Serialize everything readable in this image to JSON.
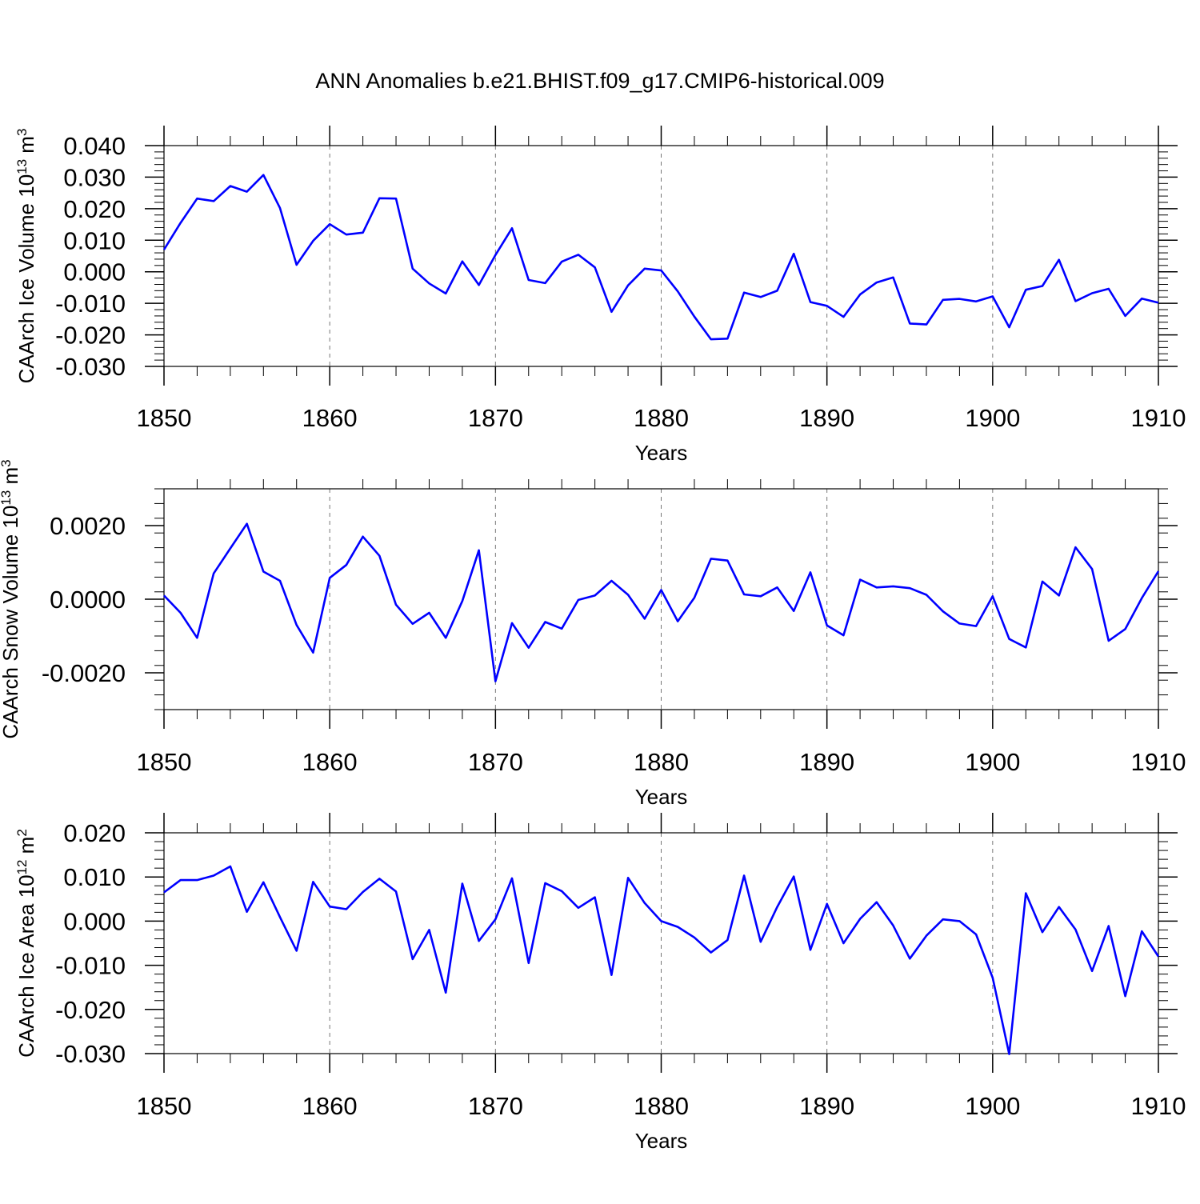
{
  "title": "ANN Anomalies b.e21.BHIST.f09_g17.CMIP6-historical.009",
  "colors": {
    "series": "#0000ff",
    "frame": "#000000",
    "grid": "#777777"
  },
  "chart_data": [
    {
      "type": "line",
      "ylabel": "CAArch Ice Volume 10",
      "ylabel_sup": "13",
      "ylabel_unit": " m",
      "ylabel_unit_sup": "3",
      "xlabel": "Years",
      "xlim": [
        1850,
        1910
      ],
      "ylim": [
        -0.03,
        0.04
      ],
      "grid": "vertical dashed",
      "x_ticks": [
        "1850",
        "1860",
        "1870",
        "1880",
        "1890",
        "1900",
        "1910"
      ],
      "y_tick_values": [
        -0.03,
        -0.02,
        -0.01,
        0.0,
        0.01,
        0.02,
        0.03,
        0.04
      ],
      "y_tick_labels": [
        "-0.030",
        "-0.020",
        "-0.010",
        "0.000",
        "0.010",
        "0.020",
        "0.030",
        "0.040"
      ],
      "x": [
        1850,
        1851,
        1852,
        1853,
        1854,
        1855,
        1856,
        1857,
        1858,
        1859,
        1860,
        1861,
        1862,
        1863,
        1864,
        1865,
        1866,
        1867,
        1868,
        1869,
        1870,
        1871,
        1872,
        1873,
        1874,
        1875,
        1876,
        1877,
        1878,
        1879,
        1880,
        1881,
        1882,
        1883,
        1884,
        1885,
        1886,
        1887,
        1888,
        1889,
        1890,
        1891,
        1892,
        1893,
        1894,
        1895,
        1896,
        1897,
        1898,
        1899,
        1900,
        1901,
        1902,
        1903,
        1904,
        1905,
        1906,
        1907,
        1908,
        1909,
        1910
      ],
      "values": [
        0.007,
        0.0155,
        0.0232,
        0.0224,
        0.0272,
        0.0254,
        0.0307,
        0.0202,
        0.0022,
        0.0098,
        0.0151,
        0.0118,
        0.0124,
        0.0233,
        0.0232,
        0.001,
        -0.0037,
        -0.0069,
        0.0033,
        -0.0042,
        0.0053,
        0.0138,
        -0.0026,
        -0.0036,
        0.0032,
        0.0054,
        0.0014,
        -0.0127,
        -0.0043,
        0.001,
        0.0004,
        -0.0062,
        -0.0142,
        -0.0214,
        -0.0212,
        -0.0066,
        -0.008,
        -0.006,
        0.0057,
        -0.0096,
        -0.0108,
        -0.0143,
        -0.0072,
        -0.0034,
        -0.0018,
        -0.0164,
        -0.0167,
        -0.0089,
        -0.0086,
        -0.0094,
        -0.0078,
        -0.0176,
        -0.0057,
        -0.0045,
        0.0038,
        -0.0093,
        -0.0068,
        -0.0054,
        -0.014,
        -0.0085,
        -0.0098
      ]
    },
    {
      "type": "line",
      "ylabel": "CAArch Snow Volume 10",
      "ylabel_sup": "13",
      "ylabel_unit": " m",
      "ylabel_unit_sup": "3",
      "xlabel": "Years",
      "xlim": [
        1850,
        1910
      ],
      "ylim": [
        -0.003,
        0.003
      ],
      "grid": "vertical dashed",
      "x_ticks": [
        "1850",
        "1860",
        "1870",
        "1880",
        "1890",
        "1900",
        "1910"
      ],
      "y_tick_values": [
        -0.002,
        0.0,
        0.002
      ],
      "y_tick_labels": [
        "-0.0020",
        "0.0000",
        "0.0020"
      ],
      "x": [
        1850,
        1851,
        1852,
        1853,
        1854,
        1855,
        1856,
        1857,
        1858,
        1859,
        1860,
        1861,
        1862,
        1863,
        1864,
        1865,
        1866,
        1867,
        1868,
        1869,
        1870,
        1871,
        1872,
        1873,
        1874,
        1875,
        1876,
        1877,
        1878,
        1879,
        1880,
        1881,
        1882,
        1883,
        1884,
        1885,
        1886,
        1887,
        1888,
        1889,
        1890,
        1891,
        1892,
        1893,
        1894,
        1895,
        1896,
        1897,
        1898,
        1899,
        1900,
        1901,
        1902,
        1903,
        1904,
        1905,
        1906,
        1907,
        1908,
        1909,
        1910
      ],
      "values": [
        0.0001,
        -0.00037,
        -0.00105,
        0.0007,
        0.00138,
        0.00205,
        0.00075,
        0.0005,
        -0.0007,
        -0.00145,
        0.00058,
        0.00093,
        0.0017,
        0.00118,
        -0.00015,
        -0.00067,
        -0.00037,
        -0.00105,
        -5e-05,
        0.00133,
        -0.00223,
        -0.00065,
        -0.00132,
        -0.00062,
        -0.0008,
        -2e-05,
        0.0001,
        0.0005,
        0.00012,
        -0.00053,
        0.00025,
        -0.0006,
        4e-05,
        0.0011,
        0.00105,
        0.00013,
        8e-05,
        0.00032,
        -0.00032,
        0.00073,
        -0.00071,
        -0.00098,
        0.00053,
        0.00032,
        0.00035,
        0.0003,
        0.00012,
        -0.00033,
        -0.00066,
        -0.00073,
        8e-05,
        -0.00108,
        -0.00131,
        0.00048,
        0.0001,
        0.00141,
        0.00082,
        -0.00113,
        -0.00081,
        3e-05,
        0.00076
      ]
    },
    {
      "type": "line",
      "ylabel": "CAArch Ice Area 10",
      "ylabel_sup": "12",
      "ylabel_unit": " m",
      "ylabel_unit_sup": "2",
      "xlabel": "Years",
      "xlim": [
        1850,
        1910
      ],
      "ylim": [
        -0.03,
        0.02
      ],
      "grid": "vertical dashed",
      "x_ticks": [
        "1850",
        "1860",
        "1870",
        "1880",
        "1890",
        "1900",
        "1910"
      ],
      "y_tick_values": [
        -0.03,
        -0.02,
        -0.01,
        0.0,
        0.01,
        0.02
      ],
      "y_tick_labels": [
        "-0.030",
        "-0.020",
        "-0.010",
        "0.000",
        "0.010",
        "0.020"
      ],
      "x": [
        1850,
        1851,
        1852,
        1853,
        1854,
        1855,
        1856,
        1857,
        1858,
        1859,
        1860,
        1861,
        1862,
        1863,
        1864,
        1865,
        1866,
        1867,
        1868,
        1869,
        1870,
        1871,
        1872,
        1873,
        1874,
        1875,
        1876,
        1877,
        1878,
        1879,
        1880,
        1881,
        1882,
        1883,
        1884,
        1885,
        1886,
        1887,
        1888,
        1889,
        1890,
        1891,
        1892,
        1893,
        1894,
        1895,
        1896,
        1897,
        1898,
        1899,
        1900,
        1901,
        1902,
        1903,
        1904,
        1905,
        1906,
        1907,
        1908,
        1909,
        1910
      ],
      "values": [
        0.0065,
        0.0093,
        0.0093,
        0.0103,
        0.0124,
        0.0021,
        0.0088,
        0.0009,
        -0.0067,
        0.0089,
        0.0033,
        0.0027,
        0.0066,
        0.0096,
        0.0067,
        -0.0086,
        -0.002,
        -0.0162,
        0.0085,
        -0.0045,
        0.0004,
        0.0097,
        -0.0095,
        0.0086,
        0.0068,
        0.003,
        0.0054,
        -0.0122,
        0.0098,
        0.0041,
        0.0,
        -0.0013,
        -0.0037,
        -0.0071,
        -0.0043,
        0.0103,
        -0.0047,
        0.0032,
        0.0101,
        -0.0065,
        0.0039,
        -0.005,
        0.0005,
        0.0043,
        -0.001,
        -0.0085,
        -0.0033,
        0.0004,
        0.0,
        -0.003,
        -0.0128,
        -0.0301,
        0.0063,
        -0.0025,
        0.0032,
        -0.0019,
        -0.0113,
        -0.0011,
        -0.017,
        -0.0023,
        -0.008
      ]
    }
  ]
}
